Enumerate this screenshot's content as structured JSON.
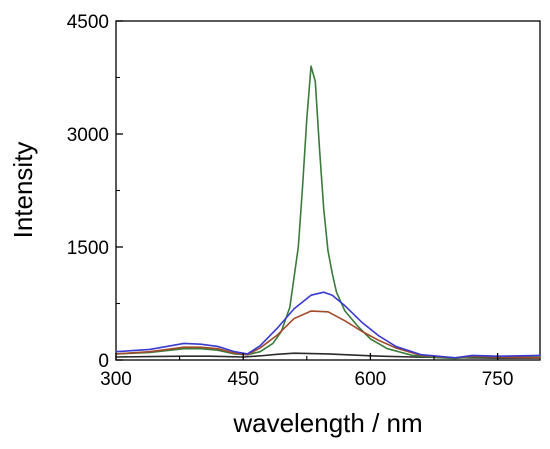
{
  "chart_data": {
    "type": "line",
    "title": "",
    "xlabel": "wavelength / nm",
    "ylabel": "Intensity",
    "xlim": [
      300,
      800
    ],
    "ylim": [
      0,
      4500
    ],
    "x_ticks": [
      300,
      450,
      600,
      750
    ],
    "y_ticks": [
      0,
      1500,
      3000,
      4500
    ],
    "x_tick_labels": [
      "300",
      "450",
      "600",
      "750"
    ],
    "y_tick_labels": [
      "0",
      "1500",
      "3000",
      "4500"
    ],
    "grid": false,
    "legend": "none",
    "series": [
      {
        "color": "#2a2a2a",
        "x": [
          300,
          340,
          380,
          410,
          430,
          450,
          470,
          490,
          510,
          530,
          550,
          570,
          600,
          650,
          700,
          750,
          800
        ],
        "y": [
          40,
          45,
          50,
          50,
          45,
          40,
          55,
          75,
          90,
          85,
          80,
          70,
          55,
          40,
          30,
          25,
          25
        ]
      },
      {
        "color": "#3a7a3a",
        "x": [
          300,
          340,
          380,
          400,
          420,
          440,
          455,
          470,
          485,
          495,
          505,
          515,
          520,
          525,
          530,
          535,
          540,
          545,
          550,
          555,
          560,
          570,
          585,
          600,
          620,
          650,
          680,
          700,
          720,
          750,
          800
        ],
        "y": [
          80,
          100,
          150,
          150,
          130,
          80,
          70,
          110,
          220,
          380,
          700,
          1500,
          2300,
          3200,
          3900,
          3700,
          2800,
          2000,
          1450,
          1150,
          900,
          650,
          450,
          280,
          150,
          60,
          30,
          20,
          40,
          40,
          40
        ]
      },
      {
        "color": "#a04a2a",
        "x": [
          300,
          340,
          380,
          400,
          420,
          440,
          455,
          470,
          490,
          510,
          530,
          550,
          570,
          590,
          610,
          630,
          660,
          700,
          720,
          750,
          800
        ],
        "y": [
          80,
          110,
          170,
          170,
          150,
          90,
          70,
          160,
          330,
          550,
          650,
          640,
          520,
          380,
          260,
          160,
          60,
          30,
          50,
          40,
          30
        ]
      },
      {
        "color": "#3a3ad0",
        "x": [
          300,
          340,
          380,
          400,
          420,
          440,
          455,
          470,
          490,
          510,
          530,
          545,
          555,
          570,
          590,
          610,
          630,
          660,
          700,
          720,
          750,
          800
        ],
        "y": [
          110,
          140,
          220,
          210,
          180,
          110,
          80,
          190,
          420,
          680,
          860,
          900,
          860,
          720,
          500,
          320,
          180,
          70,
          30,
          60,
          50,
          60
        ]
      }
    ]
  }
}
